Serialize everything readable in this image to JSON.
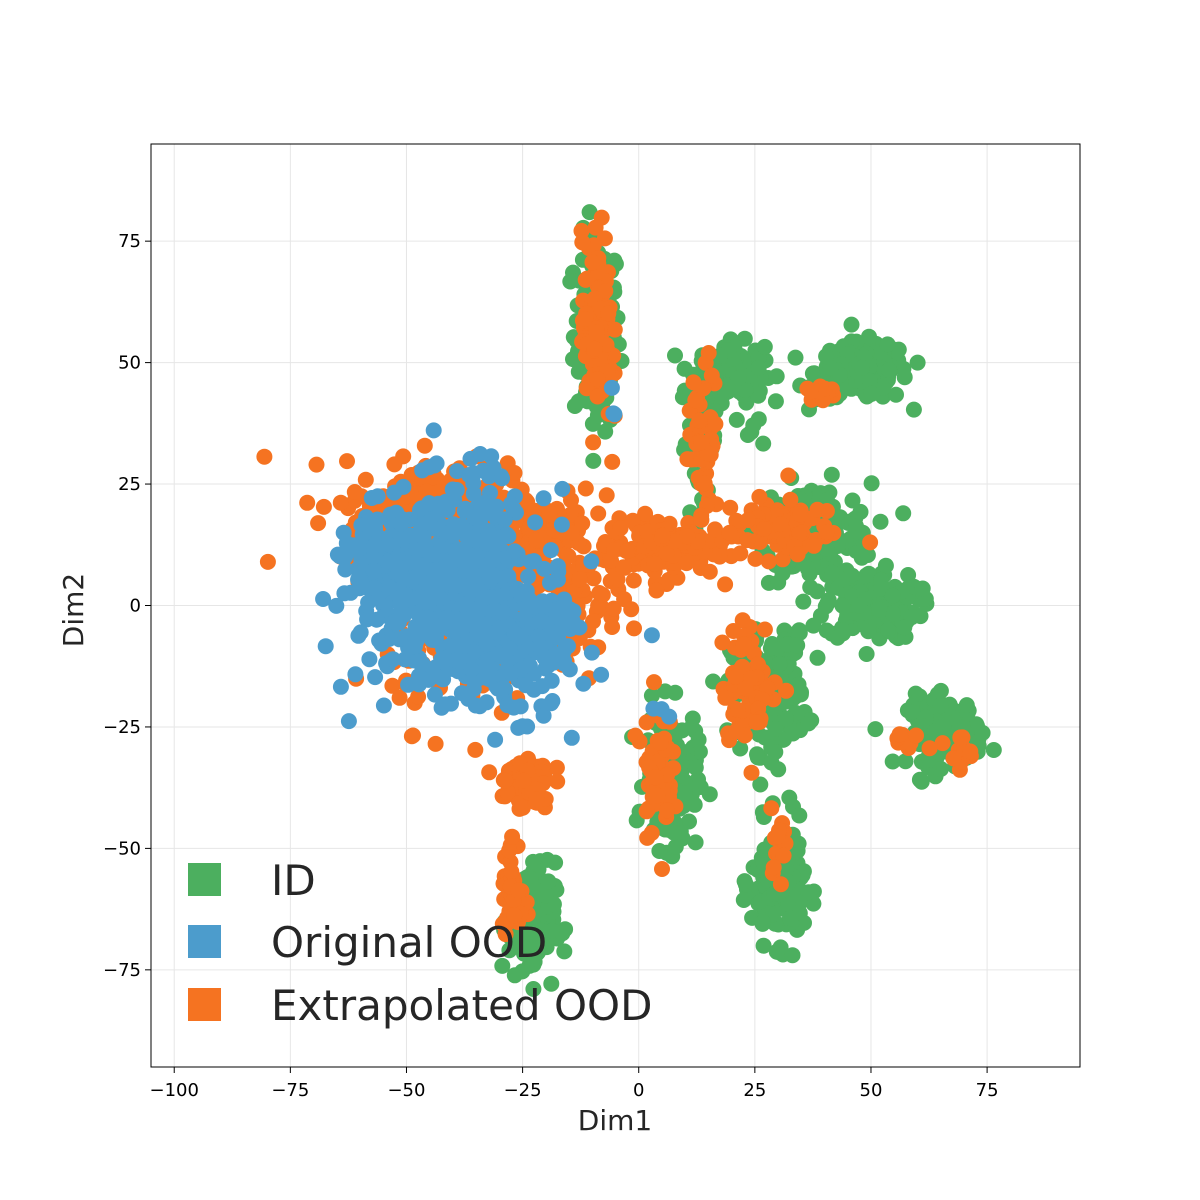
{
  "chart_data": {
    "type": "scatter",
    "title": "",
    "xlabel": "Dim1",
    "ylabel": "Dim2",
    "xlim": [
      -105,
      95
    ],
    "ylim": [
      -95,
      95
    ],
    "xticks": [
      -100,
      -75,
      -50,
      -25,
      0,
      25,
      50,
      75
    ],
    "yticks": [
      -75,
      -50,
      -25,
      0,
      25,
      50,
      75
    ],
    "xtick_labels": [
      "−100",
      "−75",
      "−50",
      "−25",
      "0",
      "25",
      "50",
      "75"
    ],
    "ytick_labels": [
      "−75",
      "−50",
      "−25",
      "0",
      "25",
      "50",
      "75"
    ],
    "grid": true,
    "legend_position": "lower-left",
    "series": [
      {
        "name": "ID",
        "color": "#4caf5f",
        "clusters": [
          {
            "cx": -9,
            "cy": 56,
            "sx": 2.5,
            "sy": 10,
            "n": 150
          },
          {
            "cx": 20,
            "cy": 48,
            "sx": 3.5,
            "sy": 3,
            "n": 110
          },
          {
            "cx": 13,
            "cy": 34,
            "sx": 2,
            "sy": 7,
            "n": 50
          },
          {
            "cx": 48,
            "cy": 48,
            "sx": 5,
            "sy": 3,
            "n": 160
          },
          {
            "cx": 38,
            "cy": 15,
            "sx": 6,
            "sy": 5,
            "n": 170
          },
          {
            "cx": 50,
            "cy": 0,
            "sx": 5,
            "sy": 3.5,
            "n": 170
          },
          {
            "cx": 28,
            "cy": -18,
            "sx": 4,
            "sy": 6,
            "n": 200
          },
          {
            "cx": 66,
            "cy": -26,
            "sx": 4,
            "sy": 3.5,
            "n": 130
          },
          {
            "cx": 30,
            "cy": -57,
            "sx": 2.8,
            "sy": 6,
            "n": 160
          },
          {
            "cx": 7,
            "cy": -36,
            "sx": 2.8,
            "sy": 7,
            "n": 150
          },
          {
            "cx": -23,
            "cy": -65,
            "sx": 2.5,
            "sy": 6,
            "n": 120
          },
          {
            "cx": 25,
            "cy": 35,
            "sx": 1.5,
            "sy": 2,
            "n": 6
          }
        ]
      },
      {
        "name": "Original OOD",
        "color": "#4c9ccc",
        "clusters": [
          {
            "cx": -40,
            "cy": 3,
            "sx": 10,
            "sy": 10,
            "n": 520
          },
          {
            "cx": -28,
            "cy": -8,
            "sx": 7,
            "sy": 7,
            "n": 220
          },
          {
            "cx": -55,
            "cy": 8,
            "sx": 4,
            "sy": 5,
            "n": 120
          },
          {
            "cx": -34,
            "cy": 29,
            "sx": 2,
            "sy": 2,
            "n": 8
          },
          {
            "cx": -5,
            "cy": 42,
            "sx": 1.5,
            "sy": 1.5,
            "n": 3
          },
          {
            "cx": 5,
            "cy": -21,
            "sx": 1.5,
            "sy": 1.5,
            "n": 3
          }
        ]
      },
      {
        "name": "Extrapolated OOD",
        "color": "#f57321",
        "clusters": [
          {
            "cx": -40,
            "cy": 18,
            "sx": 12,
            "sy": 6,
            "n": 320
          },
          {
            "cx": -20,
            "cy": 5,
            "sx": 9,
            "sy": 9,
            "n": 180
          },
          {
            "cx": 5,
            "cy": 12,
            "sx": 6,
            "sy": 3,
            "n": 120
          },
          {
            "cx": 30,
            "cy": 16,
            "sx": 6,
            "sy": 3,
            "n": 90
          },
          {
            "cx": -9,
            "cy": 56,
            "sx": 1.6,
            "sy": 10,
            "n": 110
          },
          {
            "cx": 14,
            "cy": 34,
            "sx": 1.6,
            "sy": 8,
            "n": 45
          },
          {
            "cx": 24,
            "cy": -16,
            "sx": 3,
            "sy": 6,
            "n": 70
          },
          {
            "cx": 4,
            "cy": -33,
            "sx": 1.6,
            "sy": 7,
            "n": 60
          },
          {
            "cx": -25,
            "cy": -36,
            "sx": 3,
            "sy": 3,
            "n": 60
          },
          {
            "cx": -27,
            "cy": -60,
            "sx": 1.2,
            "sy": 6,
            "n": 40
          },
          {
            "cx": 30,
            "cy": -48,
            "sx": 1,
            "sy": 3,
            "n": 15
          },
          {
            "cx": 40,
            "cy": 44,
            "sx": 2,
            "sy": 1,
            "n": 12
          },
          {
            "cx": 68,
            "cy": -31,
            "sx": 2,
            "sy": 2,
            "n": 10
          },
          {
            "cx": 58,
            "cy": -28,
            "sx": 2,
            "sy": 1,
            "n": 8
          },
          {
            "cx": -38,
            "cy": -8,
            "sx": 8,
            "sy": 8,
            "n": 90
          }
        ]
      }
    ]
  }
}
